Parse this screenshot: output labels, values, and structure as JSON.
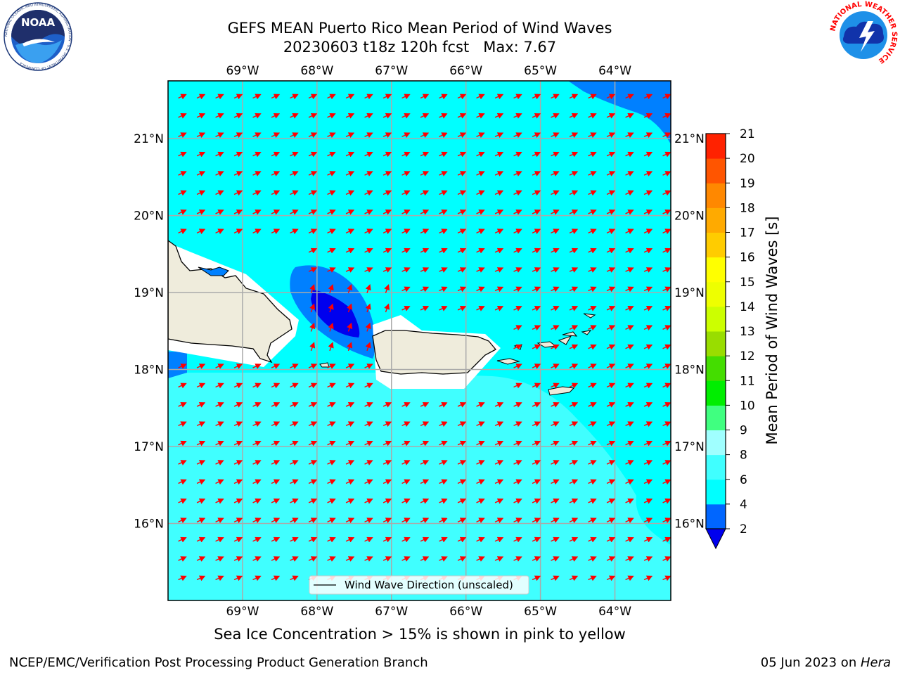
{
  "header": {
    "title_line1": "GEFS MEAN Puerto Rico Mean Period of Wind Waves",
    "title_line2": "20230603 t18z 120h fcst   Max: 7.67"
  },
  "logos": {
    "noaa_text": "NOAA",
    "noaa_ring_text": "NATIONAL OCEANIC AND ATMOSPHERIC ADMINISTRATION · U.S. DEPARTMENT OF COMMERCE",
    "nws_ring_text": "NATIONAL WEATHER SERVICE"
  },
  "map": {
    "lon_ticks": [
      "69°W",
      "68°W",
      "67°W",
      "66°W",
      "65°W",
      "64°W"
    ],
    "lon_values": [
      -69,
      -68,
      -67,
      -66,
      -65,
      -64
    ],
    "lat_ticks": [
      "21°N",
      "20°N",
      "19°N",
      "18°N",
      "17°N",
      "16°N"
    ],
    "lat_values": [
      21,
      20,
      19,
      18,
      17,
      16
    ],
    "extent": {
      "lon_min": -70.0,
      "lon_max": -63.25,
      "lat_min": 15.0,
      "lat_max": 21.75
    },
    "legend_label": "Wind Wave Direction (unscaled)",
    "arrow_color": "#ff0000",
    "land_color": "#efecdc",
    "sea_color": "#00ffff"
  },
  "colorbar": {
    "label": "Mean Period of Wind Waves [s]",
    "tick_labels": [
      "2",
      "4",
      "6",
      "8",
      "9",
      "10",
      "11",
      "12",
      "13",
      "14",
      "15",
      "16",
      "17",
      "18",
      "19",
      "20",
      "21"
    ],
    "colors": [
      "#0066ff",
      "#00ffff",
      "#40ffff",
      "#a0ffff",
      "#40ff80",
      "#00ee00",
      "#44dd00",
      "#99dd00",
      "#ccff00",
      "#eeff00",
      "#ffff00",
      "#ffcc00",
      "#ffaa00",
      "#ff8800",
      "#ff5500",
      "#ff2200"
    ],
    "under_color": "#0000ee"
  },
  "caption": "Sea Ice Concentration > 15% is shown in pink to yellow",
  "footer": {
    "left": "NCEP/EMC/Verification Post Processing Product Generation Branch",
    "right_prefix": "05 Jun 2023 on ",
    "right_machine": "Hera"
  }
}
